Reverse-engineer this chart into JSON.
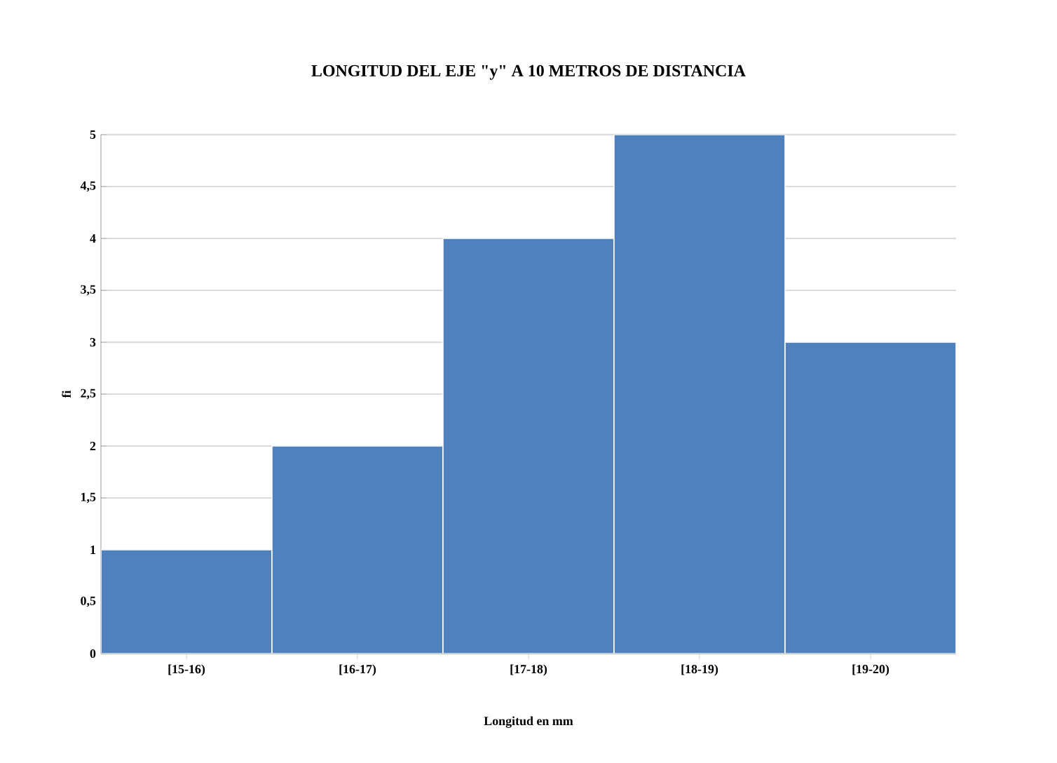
{
  "chart_data": {
    "type": "bar",
    "title": "LONGITUD DEL EJE \"y\" A 10 METROS DE DISTANCIA",
    "xlabel": "Longitud en mm",
    "ylabel": "fi",
    "categories": [
      "[15-16)",
      "[16-17)",
      "[17-18)",
      "[18-19)",
      "[19-20)"
    ],
    "values": [
      1,
      2,
      4,
      5,
      3
    ],
    "color": "#4f81bd",
    "ylim": [
      0,
      5
    ],
    "yticks": [
      0,
      {
        "value": 0.5,
        "label": "0,5"
      },
      1,
      {
        "value": 1.5,
        "label": "1,5"
      },
      2,
      {
        "value": 2.5,
        "label": "2,5"
      },
      3,
      {
        "value": 3.5,
        "label": "3,5"
      },
      4,
      {
        "value": 4.5,
        "label": "4,5"
      },
      5
    ],
    "grid": true
  }
}
